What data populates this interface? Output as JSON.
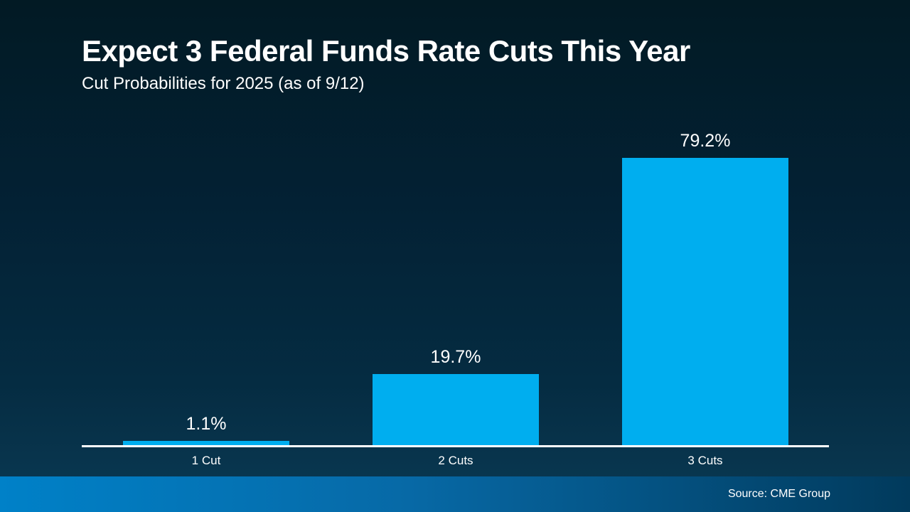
{
  "slide": {
    "title": "Expect 3 Federal Funds Rate Cuts This Year",
    "subtitle": "Cut Probabilities for 2025 (as of 9/12)",
    "source": "Source: CME Group"
  },
  "colors": {
    "bar": "#00AEEF",
    "background_top": "#021A24",
    "background_bottom": "#0A3A54",
    "footer_left": "#0081C8",
    "footer_right": "#013A5C",
    "axis": "#FFFFFF",
    "text": "#FFFFFF"
  },
  "chart_data": {
    "type": "bar",
    "title": "Expect 3 Federal Funds Rate Cuts This Year",
    "subtitle": "Cut Probabilities for 2025 (as of 9/12)",
    "categories": [
      "1 Cut",
      "2 Cuts",
      "3 Cuts"
    ],
    "values": [
      1.1,
      19.7,
      79.2
    ],
    "value_labels": [
      "1.1%",
      "19.7%",
      "79.2%"
    ],
    "xlabel": "",
    "ylabel": "",
    "unit": "%",
    "ylim": [
      0,
      100
    ],
    "grid": false,
    "legend": false,
    "source": "Source: CME Group"
  }
}
